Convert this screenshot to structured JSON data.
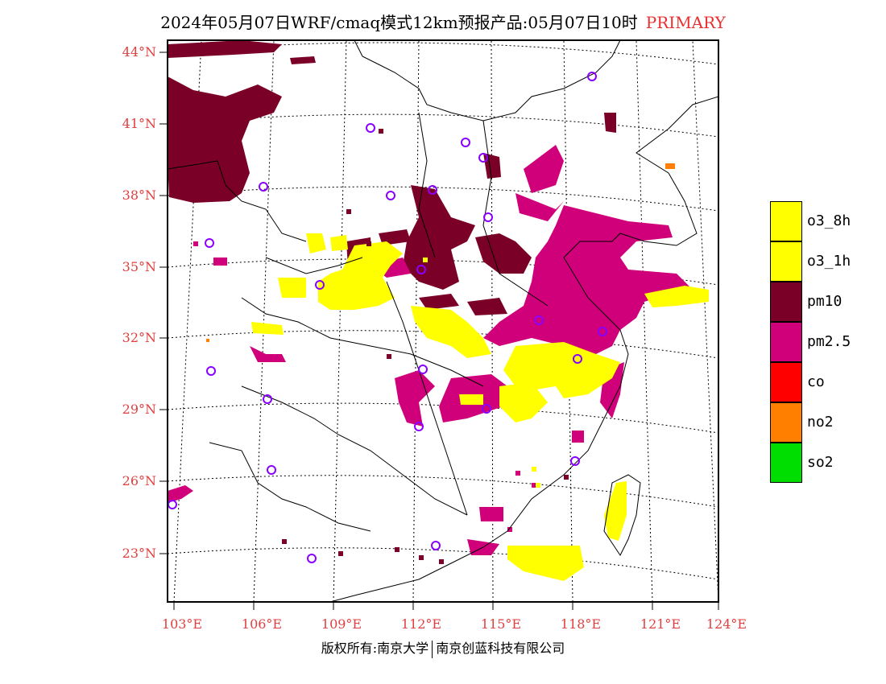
{
  "title": {
    "main": "2024年05月07日WRF/cmaq模式12km预报产品:05月07日10时",
    "tag": "PRIMARY"
  },
  "axes": {
    "lat_labels": [
      "44°N",
      "41°N",
      "38°N",
      "35°N",
      "32°N",
      "29°N",
      "26°N",
      "23°N"
    ],
    "lon_labels": [
      "103°E",
      "106°E",
      "109°E",
      "112°E",
      "115°E",
      "118°E",
      "121°E",
      "124°E"
    ]
  },
  "legend": [
    {
      "label": "o3_8h",
      "color": "#ffff00"
    },
    {
      "label": "o3_1h",
      "color": "#ffff00"
    },
    {
      "label": "pm10",
      "color": "#7a0028"
    },
    {
      "label": "pm2.5",
      "color": "#d0007a"
    },
    {
      "label": "co",
      "color": "#ff0000"
    },
    {
      "label": "no2",
      "color": "#ff8000"
    },
    {
      "label": "so2",
      "color": "#00dd00"
    }
  ],
  "colors": {
    "o3": "#ffff00",
    "pm10": "#7a0028",
    "pm25": "#d0007a",
    "no2": "#ff8000",
    "station_marker": "#8a00ff",
    "axis_label": "#e04040"
  },
  "copyright": {
    "left": "版权所有:南京大学",
    "right": "南京创蓝科技有限公司"
  }
}
